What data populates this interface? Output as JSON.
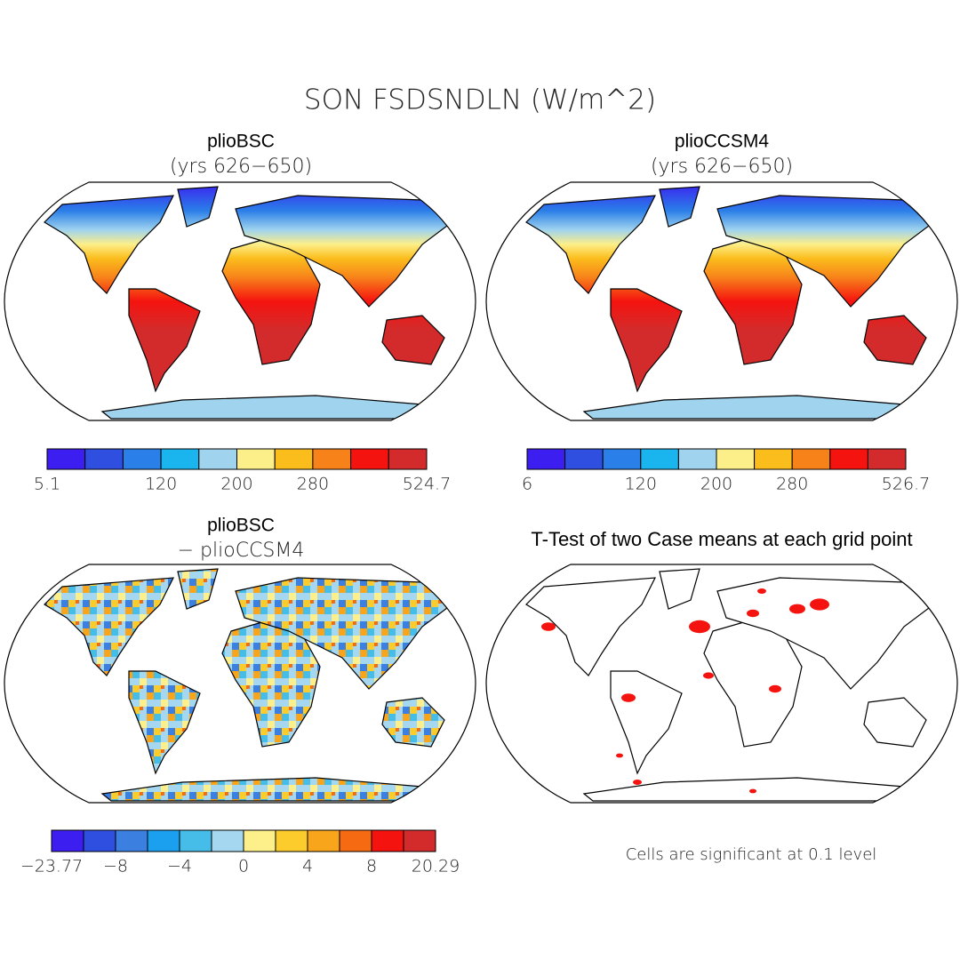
{
  "title": "SON FSDSNDLN (W/m^2)",
  "panels": [
    {
      "title": "plioBSC",
      "subtitle": "(yrs 626−650)",
      "colorbar": {
        "colors": [
          "#3c1ef0",
          "#2f4fe0",
          "#2a7fe8",
          "#1ab4ee",
          "#9fd3ee",
          "#fcef8a",
          "#fbbd1c",
          "#f7821a",
          "#f5130f",
          "#d32b2b"
        ],
        "labels": [
          "5.1",
          "120",
          "200",
          "280",
          "524.7"
        ]
      }
    },
    {
      "title": "plioCCSM4",
      "subtitle": "(yrs 626−650)",
      "colorbar": {
        "colors": [
          "#3c1ef0",
          "#2f4fe0",
          "#2a7fe8",
          "#1ab4ee",
          "#9fd3ee",
          "#fcef8a",
          "#fbbd1c",
          "#f7821a",
          "#f5130f",
          "#d32b2b"
        ],
        "labels": [
          "6",
          "120",
          "200",
          "280",
          "526.7"
        ]
      }
    },
    {
      "title": "plioBSC",
      "subtitle": "− plioCCSM4",
      "colorbar": {
        "colors": [
          "#3c1ef0",
          "#2e4fe0",
          "#3b7fe0",
          "#1aa0ef",
          "#46bce8",
          "#a5d8f0",
          "#fdf08a",
          "#fccc2c",
          "#f9a51c",
          "#f66a12",
          "#f5130f",
          "#d32b2b"
        ],
        "labels": [
          "−23.77",
          "−8",
          "−4",
          "0",
          "4",
          "8",
          "20.29"
        ]
      }
    },
    {
      "title": "T-Test of two Case means at each grid point",
      "note": "Cells are significant at 0.1 level"
    }
  ]
}
